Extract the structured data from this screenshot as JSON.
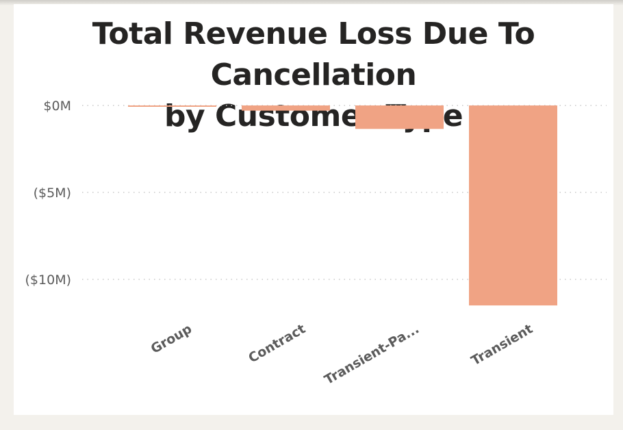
{
  "chart_data": {
    "type": "bar",
    "title": "Total Revenue Loss Due To Cancellation by Customer Type",
    "title_lines": [
      "Total Revenue Loss Due To Cancellation",
      "by Customer Type"
    ],
    "categories": [
      "Group",
      "Contract",
      "Transient-Pa...",
      "Transient"
    ],
    "values": [
      -0.05,
      -0.3,
      -1.35,
      -11.5
    ],
    "value_unit": "$M",
    "yticks": [
      {
        "value": 0,
        "label": "$0M"
      },
      {
        "value": -5,
        "label": "($5M)"
      },
      {
        "value": -10,
        "label": "($10M)"
      }
    ],
    "ylim": [
      -12,
      0
    ],
    "grid": "dotted horizontal",
    "bar_color": "#F0A384",
    "xlabel": "",
    "ylabel": ""
  }
}
